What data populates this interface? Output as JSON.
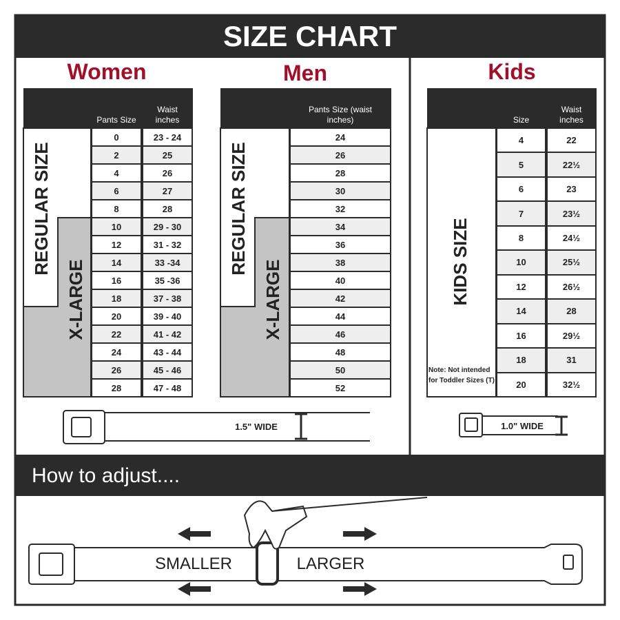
{
  "header": {
    "title": "SIZE CHART"
  },
  "women": {
    "heading": "Women",
    "columns": [
      "Pants Size",
      "Waist inches"
    ],
    "regular_label": "REGULAR SIZE",
    "xlarge_label": "X-LARGE",
    "rows": [
      [
        "0",
        "23 - 24"
      ],
      [
        "2",
        "25"
      ],
      [
        "4",
        "26"
      ],
      [
        "6",
        "27"
      ],
      [
        "8",
        "28"
      ],
      [
        "10",
        "29 - 30"
      ],
      [
        "12",
        "31 - 32"
      ],
      [
        "14",
        "33 -34"
      ],
      [
        "16",
        "35 -36"
      ],
      [
        "18",
        "37 - 38"
      ],
      [
        "20",
        "39 - 40"
      ],
      [
        "22",
        "41 - 42"
      ],
      [
        "24",
        "43 - 44"
      ],
      [
        "26",
        "45 - 46"
      ],
      [
        "28",
        "47 - 48"
      ]
    ]
  },
  "men": {
    "heading": "Men",
    "columns": [
      "Pants Size (waist inches)"
    ],
    "regular_label": "REGULAR SIZE",
    "xlarge_label": "X-LARGE",
    "rows": [
      [
        "24"
      ],
      [
        "26"
      ],
      [
        "28"
      ],
      [
        "30"
      ],
      [
        "32"
      ],
      [
        "34"
      ],
      [
        "36"
      ],
      [
        "38"
      ],
      [
        "40"
      ],
      [
        "42"
      ],
      [
        "44"
      ],
      [
        "46"
      ],
      [
        "48"
      ],
      [
        "50"
      ],
      [
        "52"
      ]
    ]
  },
  "kids": {
    "heading": "Kids",
    "columns": [
      "Size",
      "Waist inches"
    ],
    "group_label": "KIDS SIZE",
    "note": "Note: Not intended for Toddler Sizes (T)",
    "rows": [
      [
        "4",
        "22"
      ],
      [
        "5",
        "22½"
      ],
      [
        "6",
        "23"
      ],
      [
        "7",
        "23½"
      ],
      [
        "8",
        "24½"
      ],
      [
        "10",
        "25½"
      ],
      [
        "12",
        "26½"
      ],
      [
        "14",
        "28"
      ],
      [
        "16",
        "29½"
      ],
      [
        "18",
        "31"
      ],
      [
        "20",
        "32½"
      ]
    ]
  },
  "belts": {
    "adult_width": "1.5\" WIDE",
    "kids_width": "1.0\" WIDE"
  },
  "adjust": {
    "title": "How to adjust....",
    "smaller": "SMALLER",
    "larger": "LARGER"
  }
}
